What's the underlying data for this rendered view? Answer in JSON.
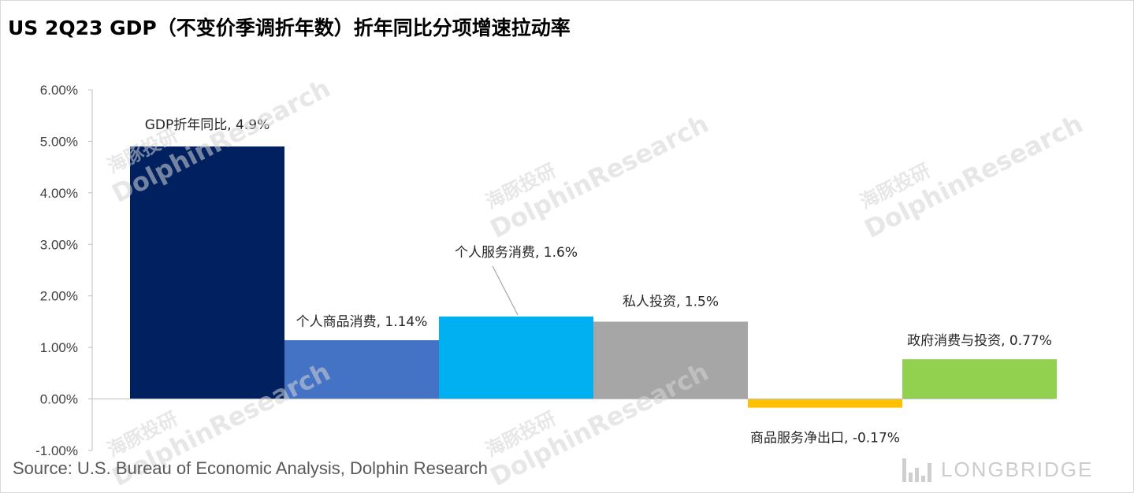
{
  "title": "US 2Q23 GDP（不变价季调折年数）折年同比分项增速拉动率",
  "source": "Source: U.S. Bureau of Economic Analysis, Dolphin Research",
  "watermark": {
    "cn": "海豚投研",
    "en": "DolphinResearch"
  },
  "logo": {
    "text": "LONGBRIDGE"
  },
  "chart_data": {
    "type": "bar",
    "title": "US 2Q23 GDP（不变价季调折年数）折年同比分项增速拉动率",
    "xlabel": "",
    "ylabel": "",
    "ylim": [
      -0.01,
      0.06
    ],
    "yticks": [
      -0.01,
      0.0,
      0.01,
      0.02,
      0.03,
      0.04,
      0.05,
      0.06
    ],
    "ytick_labels": [
      "-1.00%",
      "0.00%",
      "1.00%",
      "2.00%",
      "3.00%",
      "4.00%",
      "5.00%",
      "6.00%"
    ],
    "categories": [
      "GDP折年同比",
      "个人商品消费",
      "个人服务消费",
      "私人投资",
      "商品服务净出口",
      "政府消费与投资"
    ],
    "values": [
      0.049,
      0.0114,
      0.016,
      0.015,
      -0.0017,
      0.0077
    ],
    "data_labels": [
      "GDP折年同比, 4.9%",
      "个人商品消费, 1.14%",
      "个人服务消费, 1.6%",
      "私人投资, 1.5%",
      "商品服务净出口, -0.17%",
      "政府消费与投资, 0.77%"
    ],
    "colors": [
      "#002060",
      "#4472c4",
      "#00b0f0",
      "#a6a6a6",
      "#ffc000",
      "#92d050"
    ],
    "grid": false,
    "legend": "none"
  }
}
